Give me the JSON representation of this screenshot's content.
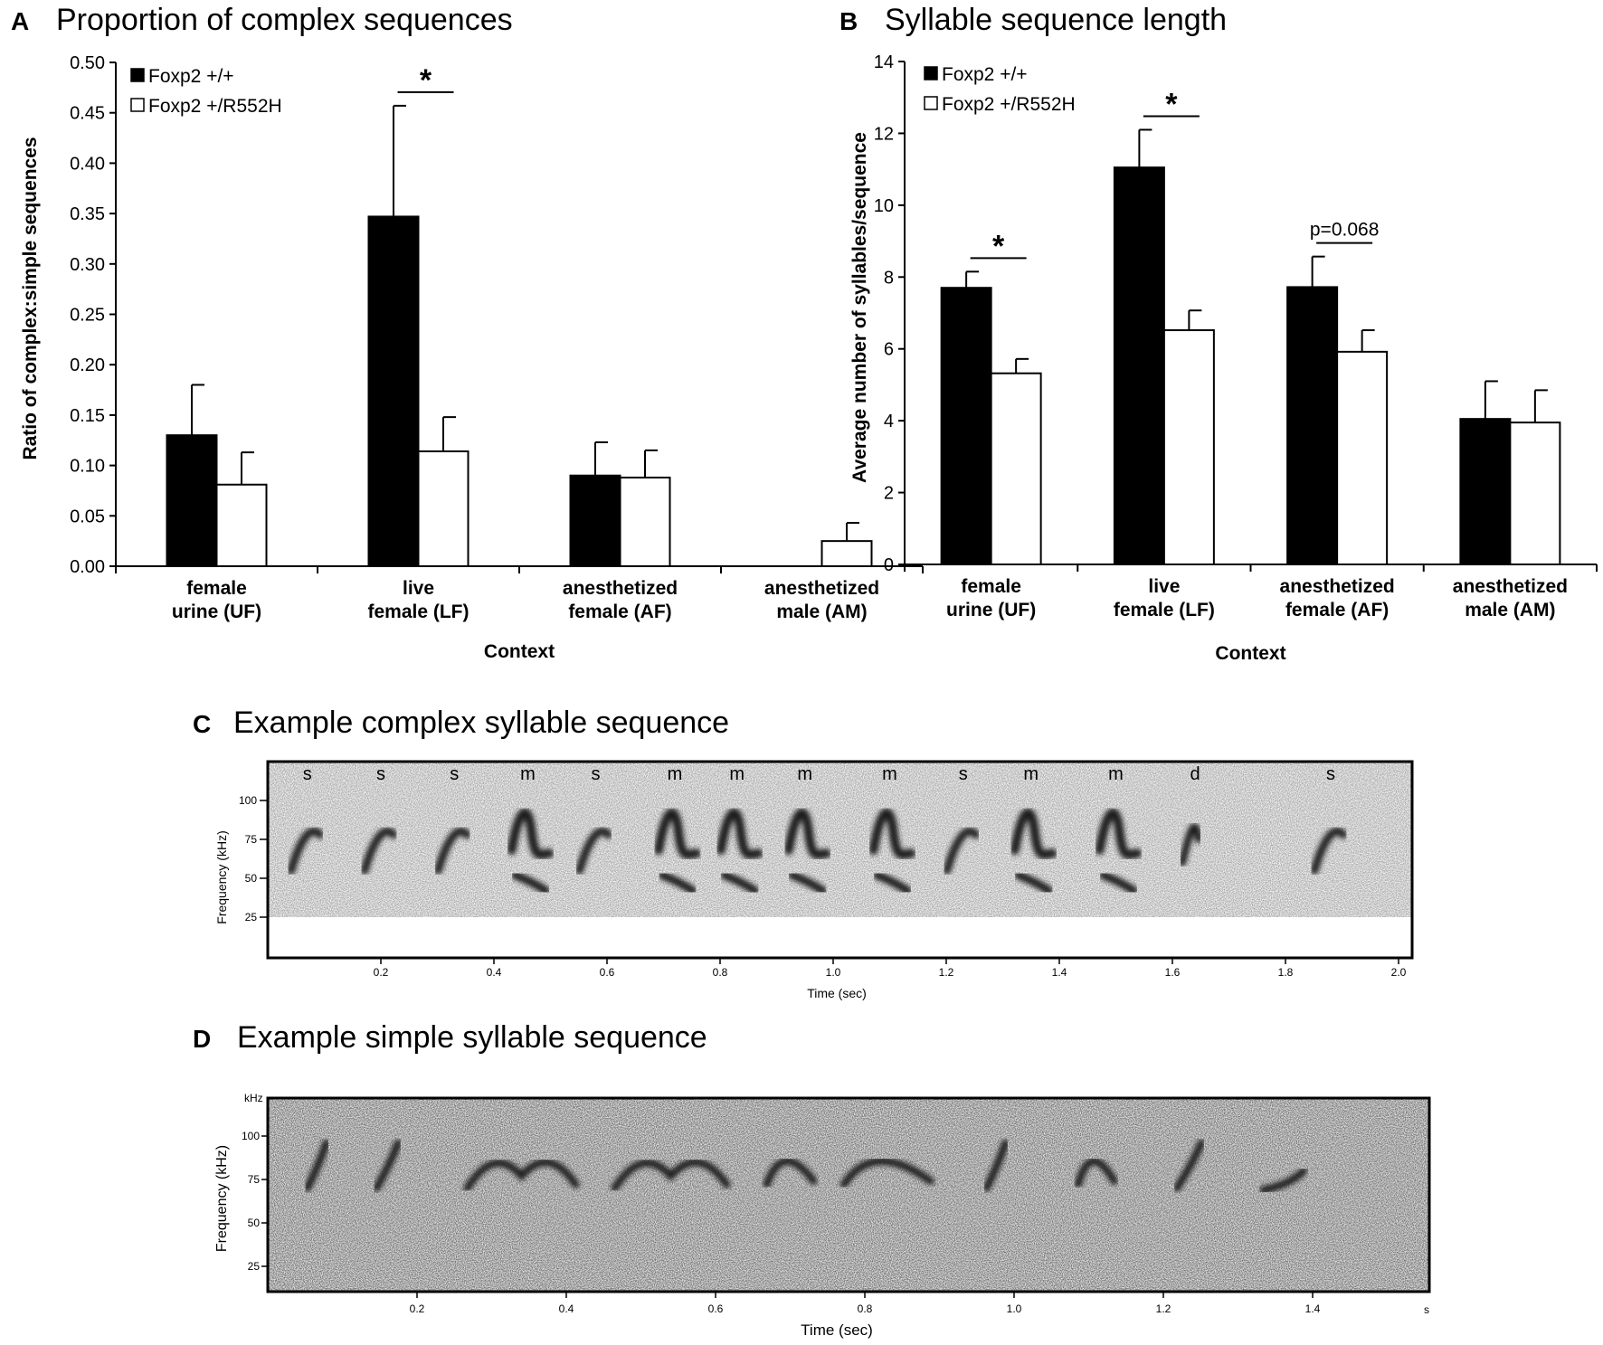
{
  "panels": {
    "A": {
      "letter": "A",
      "title": "Proportion of complex sequences"
    },
    "B": {
      "letter": "B",
      "title": "Syllable sequence length"
    },
    "C": {
      "letter": "C",
      "title": "Example complex syllable sequence"
    },
    "D": {
      "letter": "D",
      "title": "Example simple syllable sequence"
    }
  },
  "chart_data": [
    {
      "id": "A",
      "type": "bar",
      "title": "Proportion of complex sequences",
      "xlabel": "Context",
      "ylabel": "Ratio of complex:simple sequences",
      "ylim": [
        0,
        0.5
      ],
      "yticks": [
        "0.00",
        "0.05",
        "0.10",
        "0.15",
        "0.20",
        "0.25",
        "0.30",
        "0.35",
        "0.40",
        "0.45",
        "0.50"
      ],
      "categories": [
        [
          "female",
          "urine (UF)"
        ],
        [
          "live",
          "female (LF)"
        ],
        [
          "anesthetized",
          "female (AF)"
        ],
        [
          "anesthetized",
          "male (AM)"
        ]
      ],
      "series": [
        {
          "name": "Foxp2 +/+",
          "color": "#000000",
          "values": [
            0.13,
            0.347,
            0.09,
            0.0
          ],
          "errors": [
            0.05,
            0.11,
            0.033,
            0.0
          ]
        },
        {
          "name": "Foxp2 +/R552H",
          "color": "#ffffff",
          "values": [
            0.081,
            0.114,
            0.088,
            0.025
          ],
          "errors": [
            0.032,
            0.034,
            0.027,
            0.018
          ]
        }
      ],
      "legend": "top-left",
      "annotations": [
        {
          "text": "*",
          "category": 1
        }
      ]
    },
    {
      "id": "B",
      "type": "bar",
      "title": "Syllable sequence length",
      "xlabel": "Context",
      "ylabel": "Average number of syllables/sequence",
      "ylim": [
        0,
        14
      ],
      "yticks": [
        "0",
        "2",
        "4",
        "6",
        "8",
        "10",
        "12",
        "14"
      ],
      "categories": [
        [
          "female",
          "urine (UF)"
        ],
        [
          "live",
          "female (LF)"
        ],
        [
          "anesthetized",
          "female (AF)"
        ],
        [
          "anesthetized",
          "male (AM)"
        ]
      ],
      "series": [
        {
          "name": "Foxp2 +/+",
          "color": "#000000",
          "values": [
            7.7,
            11.05,
            7.72,
            4.05
          ],
          "errors": [
            0.45,
            1.05,
            0.85,
            1.05
          ]
        },
        {
          "name": "Foxp2 +/R552H",
          "color": "#ffffff",
          "values": [
            5.32,
            6.52,
            5.92,
            3.95
          ],
          "errors": [
            0.4,
            0.55,
            0.6,
            0.9
          ]
        }
      ],
      "legend": "top-left",
      "annotations": [
        {
          "text": "*",
          "category": 0
        },
        {
          "text": "*",
          "category": 1
        },
        {
          "text": "p=0.068",
          "category": 2
        }
      ]
    }
  ],
  "spectrogram_c": {
    "ylabel": "Frequency (kHz)",
    "xlabel": "Time (sec)",
    "yticks": [
      "100",
      "75",
      "50",
      "25"
    ],
    "xticks": [
      "0.2",
      "0.4",
      "0.6",
      "0.8",
      "1.0",
      "1.2",
      "1.4",
      "1.6",
      "1.8",
      "2.0"
    ],
    "syllable_labels": [
      "s",
      "s",
      "s",
      "m",
      "s",
      "m",
      "m",
      "m",
      "m",
      "s",
      "m",
      "m",
      "d",
      "s"
    ],
    "syllable_times": [
      0.07,
      0.2,
      0.33,
      0.46,
      0.58,
      0.72,
      0.83,
      0.95,
      1.1,
      1.23,
      1.35,
      1.5,
      1.64,
      1.88
    ]
  },
  "spectrogram_d": {
    "ylabel": "Frequency (kHz)",
    "yunit": "kHz",
    "xlabel": "Time (sec)",
    "xunit": "s",
    "yticks": [
      "100",
      "75",
      "50",
      "25"
    ],
    "xticks": [
      "0.2",
      "0.4",
      "0.6",
      "0.8",
      "1.0",
      "1.2",
      "1.4"
    ]
  }
}
